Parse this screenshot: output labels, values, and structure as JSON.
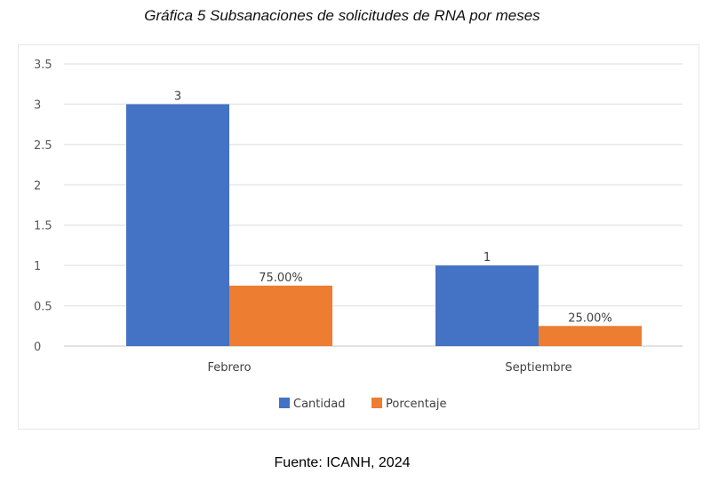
{
  "caption": "Gráfica 5 Subsanaciones de solicitudes de RNA por meses",
  "source": "Fuente: ICANH, 2024",
  "chart_data": {
    "type": "bar",
    "title": "",
    "xlabel": "",
    "ylabel": "",
    "ylim": [
      0,
      3.5
    ],
    "yticks": [
      "0",
      "0.5",
      "1",
      "1.5",
      "2",
      "2.5",
      "3",
      "3.5"
    ],
    "grid": true,
    "legend_position": "bottom",
    "categories": [
      "Febrero",
      "Septiembre"
    ],
    "series": [
      {
        "name": "Cantidad",
        "color": "#4472C4",
        "values": [
          3,
          1
        ],
        "labels": [
          "3",
          "1"
        ]
      },
      {
        "name": "Porcentaje",
        "color": "#ED7D31",
        "values": [
          0.75,
          0.25
        ],
        "labels": [
          "75.00%",
          "25.00%"
        ]
      }
    ]
  }
}
